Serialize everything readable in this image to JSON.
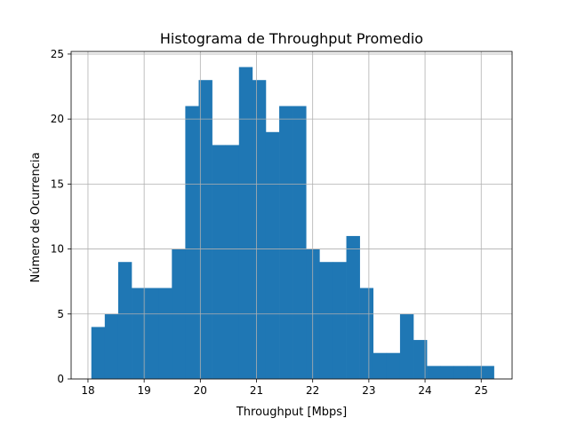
{
  "chart_data": {
    "type": "bar",
    "title": "Histograma de Throughput Promedio",
    "xlabel": "Throughput [Mbps]",
    "ylabel": "Número de Ocurrencia",
    "xlim": [
      17.7,
      25.55
    ],
    "ylim": [
      0,
      25.2
    ],
    "xticks": [
      18,
      19,
      20,
      21,
      22,
      23,
      24,
      25
    ],
    "yticks": [
      0,
      5,
      10,
      15,
      20,
      25
    ],
    "grid": true,
    "bar_color": "#1f77b4",
    "bins": {
      "start": 18.06,
      "width": 0.2389,
      "counts": [
        4,
        5,
        9,
        7,
        7,
        7,
        10,
        21,
        23,
        18,
        18,
        24,
        23,
        19,
        21,
        21,
        10,
        9,
        9,
        11,
        7,
        2,
        2,
        5,
        3,
        1,
        1,
        1,
        1,
        1
      ]
    }
  }
}
